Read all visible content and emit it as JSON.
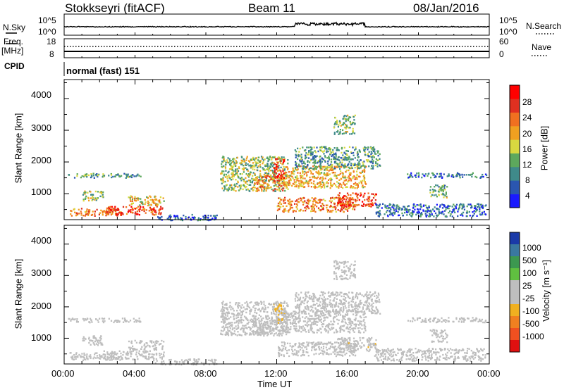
{
  "header": {
    "station": "Stokkseyri (fitACF)",
    "beam": "Beam 11",
    "date": "08/Jan/2016"
  },
  "noise_panel": {
    "left_label": "N.Sky",
    "right_label": "N.Search",
    "left_ticks": [
      "10^5",
      "10^0"
    ],
    "right_ticks": [
      "10^5",
      "10^0"
    ]
  },
  "freq_panel": {
    "left_label_1": "Freq.",
    "left_label_2": "[MHz]",
    "right_label": "Nave",
    "left_ticks": [
      "18",
      "8"
    ],
    "right_ticks": [
      "60",
      "0"
    ]
  },
  "cpid_panel": {
    "label": "CPID",
    "text": "normal (fast) 151"
  },
  "power_panel": {
    "ylabel": "Slant Range [km]",
    "colorbar_label": "Power [dB]",
    "y_ticks": [
      "4000",
      "3000",
      "2000",
      "1000"
    ],
    "colorbar_ticks": [
      "28",
      "24",
      "20",
      "16",
      "12",
      "8",
      "4"
    ]
  },
  "velocity_panel": {
    "ylabel": "Slant Range [km]",
    "colorbar_label": "Velocity [m s⁻¹]",
    "y_ticks": [
      "4000",
      "3000",
      "2000",
      "1000"
    ],
    "colorbar_ticks": [
      "1000",
      "500",
      "100",
      "25",
      "-25",
      "-100",
      "-500",
      "-1000"
    ]
  },
  "x_axis": {
    "label": "Time UT",
    "ticks": [
      "00:00",
      "04:00",
      "08:00",
      "12:00",
      "16:00",
      "20:00",
      "00:00"
    ]
  },
  "colors": {
    "power_scale": [
      "#1a1aff",
      "#2a56b0",
      "#3f8a8a",
      "#5da85d",
      "#d8d840",
      "#f0a020",
      "#f07020",
      "#e03020",
      "#ff0000"
    ],
    "velocity_scale": [
      "#1a3aa8",
      "#3a78a0",
      "#3c9850",
      "#60c040",
      "#bebebe",
      "#bebebe",
      "#f0b020",
      "#f08020",
      "#f05020",
      "#e01010"
    ]
  },
  "chart_data": {
    "type": "heatmap",
    "x_unit": "hours UT",
    "y_unit": "km",
    "xlim": [
      0,
      24
    ],
    "ylim": [
      180,
      4600
    ],
    "power_clim": [
      0,
      32
    ],
    "velocity_clim": [
      -1250,
      1250
    ],
    "regions": [
      {
        "t0": 0.2,
        "t1": 4.3,
        "r0": 1520,
        "r1": 1660,
        "power": 10,
        "velocity": 0
      },
      {
        "t0": 0.3,
        "t1": 3.2,
        "r0": 320,
        "r1": 560,
        "power": 22,
        "velocity": 110
      },
      {
        "t0": 2.2,
        "t1": 5.6,
        "r0": 350,
        "r1": 620,
        "power": 26,
        "velocity": 150
      },
      {
        "t0": 1.0,
        "t1": 2.2,
        "r0": 800,
        "r1": 1100,
        "power": 14,
        "velocity": 60
      },
      {
        "t0": 3.6,
        "t1": 5.6,
        "r0": 650,
        "r1": 950,
        "power": 18,
        "velocity": 110
      },
      {
        "t0": 5.0,
        "t1": 8.6,
        "r0": 180,
        "r1": 360,
        "power": 6,
        "velocity": 0
      },
      {
        "t0": 8.8,
        "t1": 12.6,
        "r0": 1100,
        "r1": 2200,
        "power": 14,
        "velocity": 0
      },
      {
        "t0": 10.6,
        "t1": 12.4,
        "r0": 1100,
        "r1": 1600,
        "power": 22,
        "velocity": -60
      },
      {
        "t0": 11.8,
        "t1": 12.4,
        "r0": 1500,
        "r1": 2150,
        "power": 27,
        "velocity": -250
      },
      {
        "t0": 12.4,
        "t1": 17.0,
        "r0": 1200,
        "r1": 1900,
        "power": 19,
        "velocity": 0
      },
      {
        "t0": 13.0,
        "t1": 17.8,
        "r0": 1800,
        "r1": 2500,
        "power": 10,
        "velocity": 0
      },
      {
        "t0": 15.2,
        "t1": 16.4,
        "r0": 2900,
        "r1": 3500,
        "power": 13,
        "velocity": 0
      },
      {
        "t0": 12.0,
        "t1": 16.4,
        "r0": 450,
        "r1": 900,
        "power": 22,
        "velocity": -150
      },
      {
        "t0": 15.4,
        "t1": 17.6,
        "r0": 600,
        "r1": 1050,
        "power": 26,
        "velocity": -180
      },
      {
        "t0": 19.3,
        "t1": 23.8,
        "r0": 1520,
        "r1": 1680,
        "power": 8,
        "velocity": 0
      },
      {
        "t0": 20.6,
        "t1": 21.6,
        "r0": 900,
        "r1": 1300,
        "power": 12,
        "velocity": 0
      },
      {
        "t0": 17.5,
        "t1": 23.8,
        "r0": 300,
        "r1": 700,
        "power": 7,
        "velocity": -120
      }
    ]
  }
}
